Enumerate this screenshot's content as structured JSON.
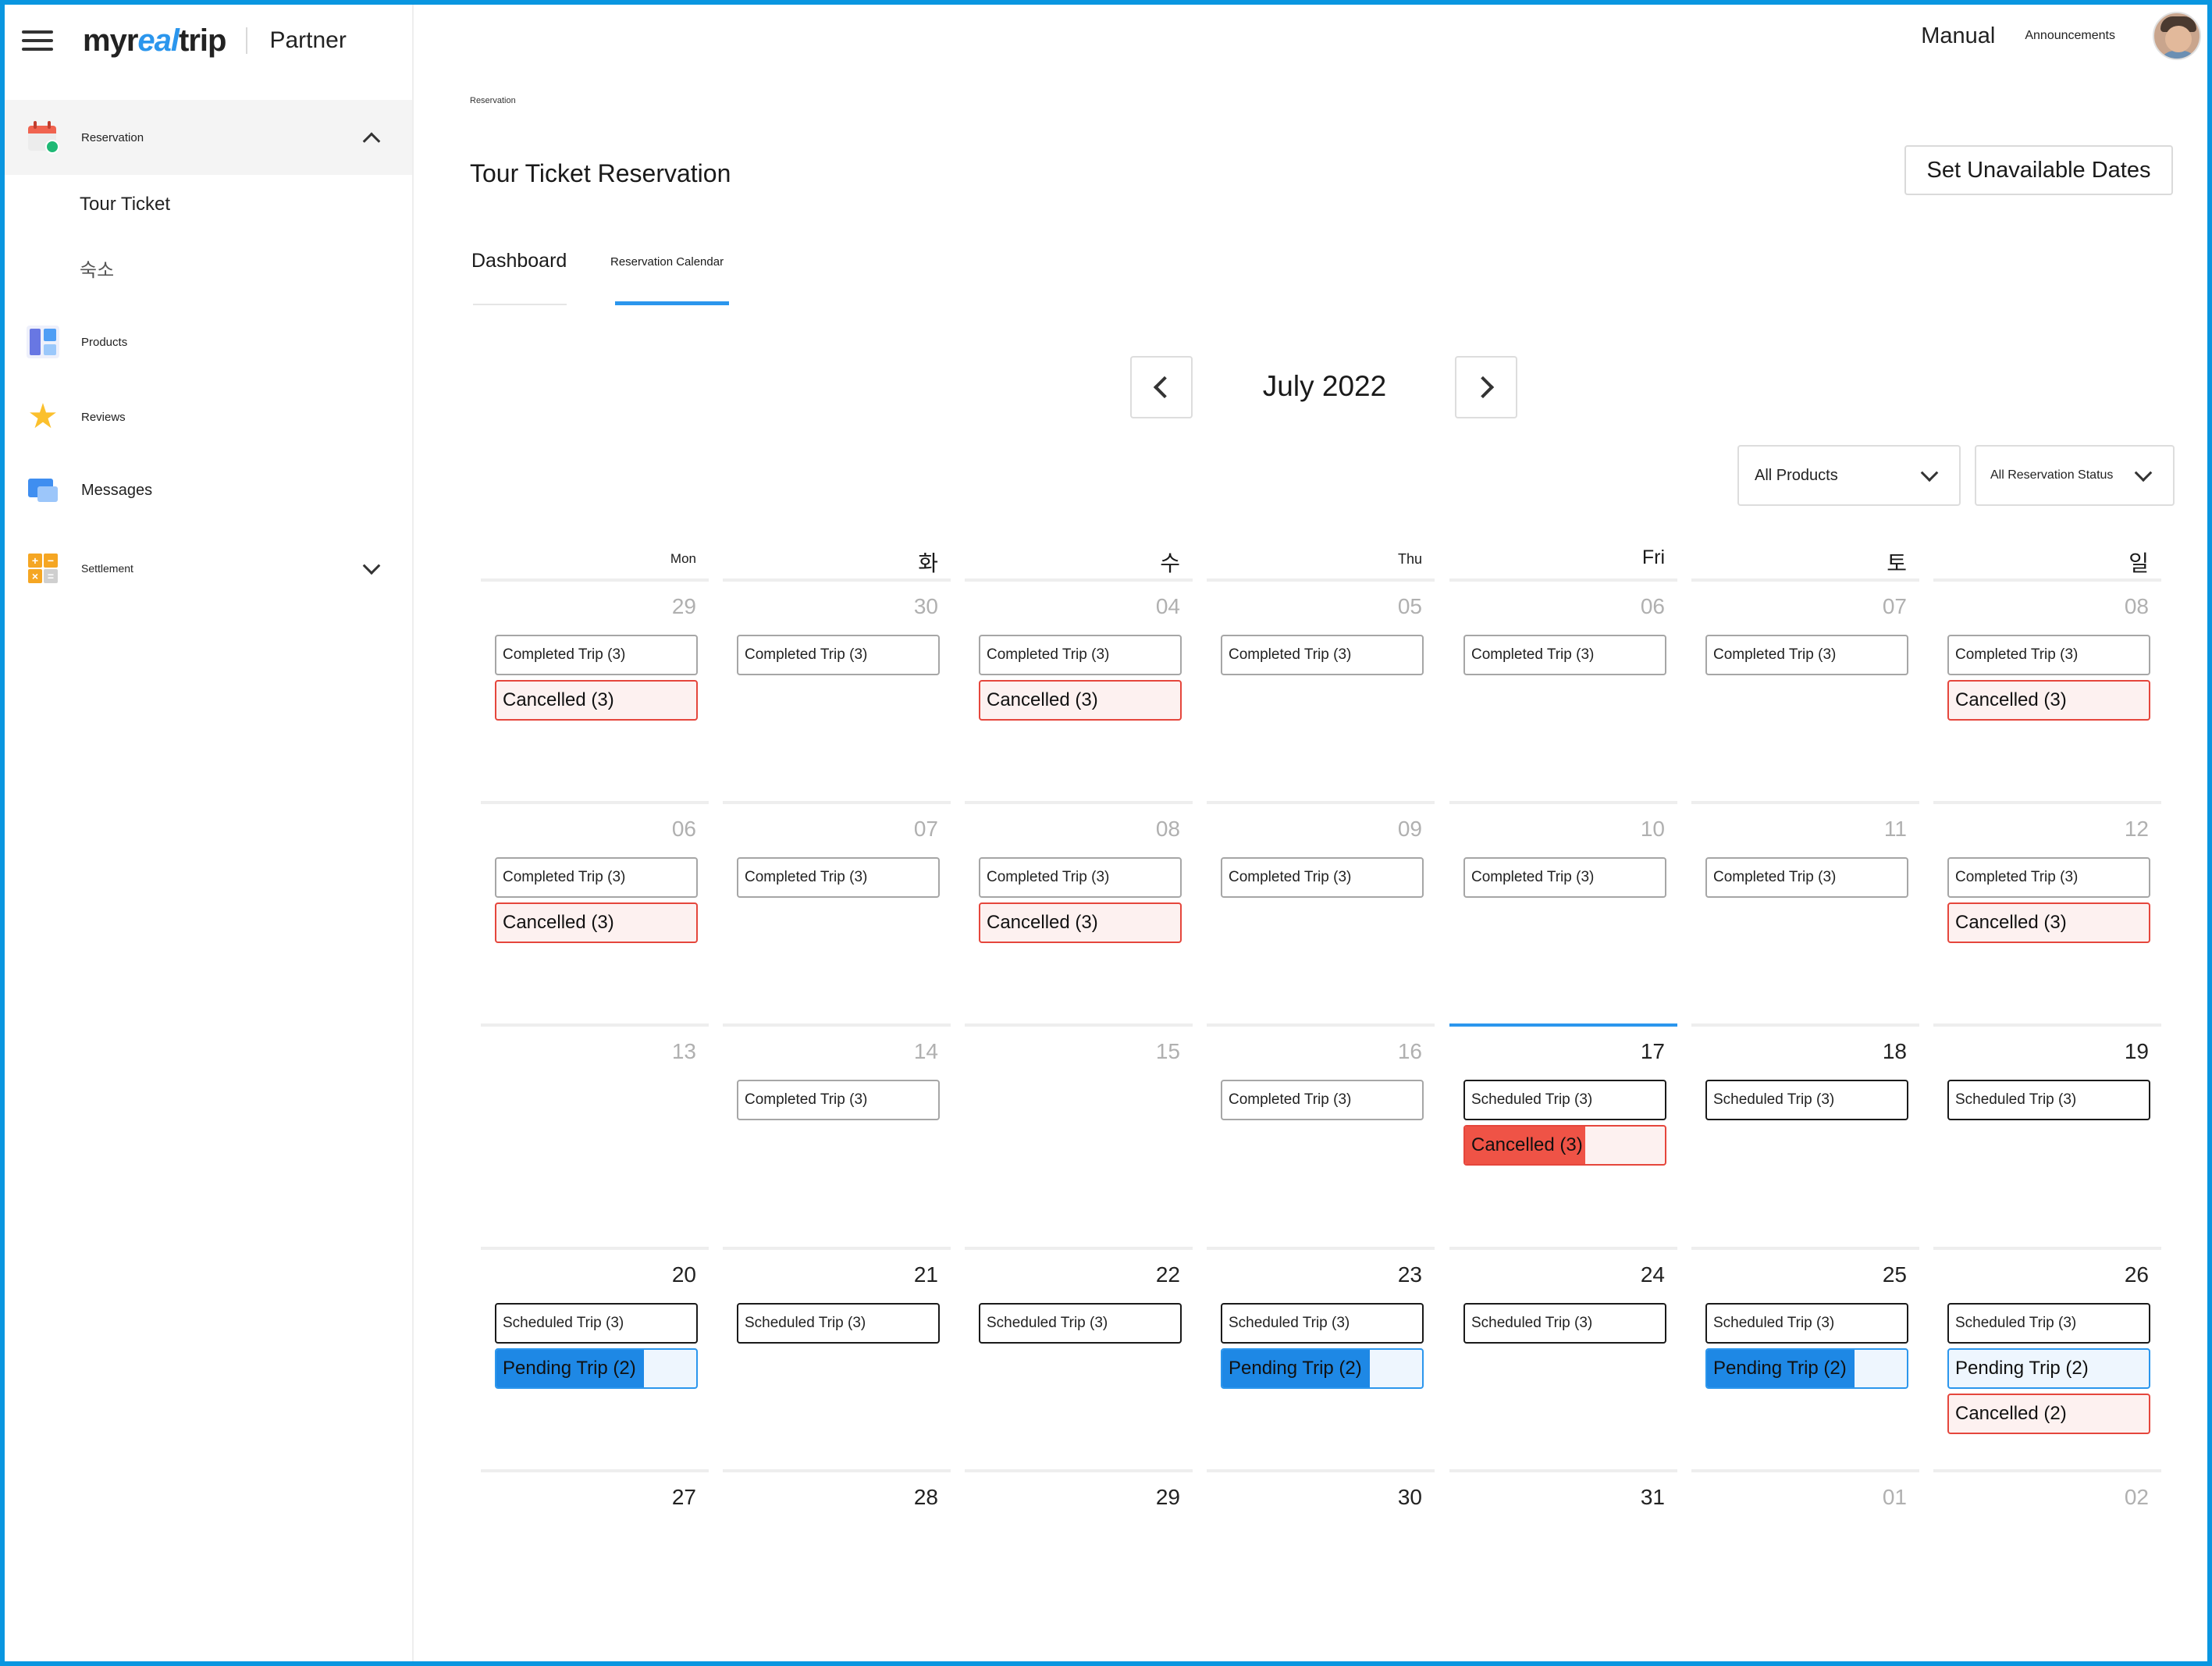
{
  "sidebar": {
    "logo_main": "myr",
    "logo_accent": "eal",
    "logo_tail": "trip",
    "partner": "Partner",
    "reservation": "Reservation",
    "sub_tour_ticket": "Tour Ticket",
    "sub_lodging": "숙소",
    "products": "Products",
    "reviews": "Reviews",
    "messages": "Messages",
    "settlement": "Settlement"
  },
  "topbar": {
    "manual": "Manual",
    "announcements": "Announcements"
  },
  "page": {
    "breadcrumb": "Reservation",
    "title": "Tour Ticket Reservation",
    "unavailable_button": "Set Unavailable Dates",
    "tab_dashboard": "Dashboard",
    "tab_calendar": "Reservation Calendar",
    "active_tab": "Reservation Calendar"
  },
  "calendar": {
    "month": "July 2022",
    "filter_products": "All Products",
    "filter_status": "All Reservation Status",
    "weekdays": [
      "Mon",
      "화",
      "수",
      "Thu",
      "Fri",
      "토",
      "일"
    ],
    "today": "17",
    "colors": {
      "accent": "#2b96ed",
      "cancelled": "#e5463c",
      "pending": "#1e88e5",
      "completed_border": "#a6a6a6",
      "scheduled_border": "#1a1a1a"
    },
    "weeks": [
      [
        {
          "day": "29",
          "muted": true,
          "items": [
            {
              "type": "completed",
              "label": "Completed Trip (3)"
            },
            {
              "type": "cancelled",
              "label": "Cancelled (3)"
            }
          ]
        },
        {
          "day": "30",
          "muted": true,
          "items": [
            {
              "type": "completed",
              "label": "Completed Trip (3)"
            }
          ]
        },
        {
          "day": "04",
          "muted": true,
          "items": [
            {
              "type": "completed",
              "label": "Completed Trip (3)"
            },
            {
              "type": "cancelled",
              "label": "Cancelled (3)"
            }
          ]
        },
        {
          "day": "05",
          "muted": true,
          "items": [
            {
              "type": "completed",
              "label": "Completed Trip (3)"
            }
          ]
        },
        {
          "day": "06",
          "muted": true,
          "items": [
            {
              "type": "completed",
              "label": "Completed Trip (3)"
            }
          ]
        },
        {
          "day": "07",
          "muted": true,
          "items": [
            {
              "type": "completed",
              "label": "Completed Trip (3)"
            }
          ]
        },
        {
          "day": "08",
          "muted": true,
          "items": [
            {
              "type": "completed",
              "label": "Completed Trip (3)"
            },
            {
              "type": "cancelled",
              "label": "Cancelled (3)"
            }
          ]
        }
      ],
      [
        {
          "day": "06",
          "muted": true,
          "items": [
            {
              "type": "completed",
              "label": "Completed Trip (3)"
            },
            {
              "type": "cancelled",
              "label": "Cancelled (3)"
            }
          ]
        },
        {
          "day": "07",
          "muted": true,
          "items": [
            {
              "type": "completed",
              "label": "Completed Trip (3)"
            }
          ]
        },
        {
          "day": "08",
          "muted": true,
          "items": [
            {
              "type": "completed",
              "label": "Completed Trip (3)"
            },
            {
              "type": "cancelled",
              "label": "Cancelled (3)"
            }
          ]
        },
        {
          "day": "09",
          "muted": true,
          "items": [
            {
              "type": "completed",
              "label": "Completed Trip (3)"
            }
          ]
        },
        {
          "day": "10",
          "muted": true,
          "items": [
            {
              "type": "completed",
              "label": "Completed Trip (3)"
            }
          ]
        },
        {
          "day": "11",
          "muted": true,
          "items": [
            {
              "type": "completed",
              "label": "Completed Trip (3)"
            }
          ]
        },
        {
          "day": "12",
          "muted": true,
          "items": [
            {
              "type": "completed",
              "label": "Completed Trip (3)"
            },
            {
              "type": "cancelled",
              "label": "Cancelled (3)"
            }
          ]
        }
      ],
      [
        {
          "day": "13",
          "muted": true,
          "items": []
        },
        {
          "day": "14",
          "muted": true,
          "items": [
            {
              "type": "completed",
              "label": "Completed Trip (3)"
            }
          ]
        },
        {
          "day": "15",
          "muted": true,
          "items": []
        },
        {
          "day": "16",
          "muted": true,
          "items": [
            {
              "type": "completed",
              "label": "Completed Trip (3)"
            }
          ]
        },
        {
          "day": "17",
          "muted": false,
          "today": true,
          "items": [
            {
              "type": "scheduled",
              "label": "Scheduled Trip (3)"
            },
            {
              "type": "cancelled",
              "label": "Cancelled (3)",
              "highlight": 0.6
            }
          ]
        },
        {
          "day": "18",
          "muted": false,
          "items": [
            {
              "type": "scheduled",
              "label": "Scheduled Trip (3)"
            }
          ]
        },
        {
          "day": "19",
          "muted": false,
          "items": [
            {
              "type": "scheduled",
              "label": "Scheduled Trip (3)"
            }
          ]
        }
      ],
      [
        {
          "day": "20",
          "muted": false,
          "items": [
            {
              "type": "scheduled",
              "label": "Scheduled Trip (3)"
            },
            {
              "type": "pending",
              "label": "Pending Trip (2)",
              "highlight": 0.74
            }
          ]
        },
        {
          "day": "21",
          "muted": false,
          "items": [
            {
              "type": "scheduled",
              "label": "Scheduled Trip (3)"
            }
          ]
        },
        {
          "day": "22",
          "muted": false,
          "items": [
            {
              "type": "scheduled",
              "label": "Scheduled Trip (3)"
            }
          ]
        },
        {
          "day": "23",
          "muted": false,
          "items": [
            {
              "type": "scheduled",
              "label": "Scheduled Trip (3)"
            },
            {
              "type": "pending",
              "label": "Pending Trip (2)",
              "highlight": 0.74
            }
          ]
        },
        {
          "day": "24",
          "muted": false,
          "items": [
            {
              "type": "scheduled",
              "label": "Scheduled Trip (3)"
            }
          ]
        },
        {
          "day": "25",
          "muted": false,
          "items": [
            {
              "type": "scheduled",
              "label": "Scheduled Trip (3)"
            },
            {
              "type": "pending",
              "label": "Pending Trip (2)",
              "highlight": 0.74
            }
          ]
        },
        {
          "day": "26",
          "muted": false,
          "items": [
            {
              "type": "scheduled",
              "label": "Scheduled Trip (3)"
            },
            {
              "type": "pending",
              "label": "Pending Trip (2)"
            },
            {
              "type": "cancelled",
              "label": "Cancelled (2)"
            }
          ]
        }
      ],
      [
        {
          "day": "27",
          "muted": false,
          "items": []
        },
        {
          "day": "28",
          "muted": false,
          "items": []
        },
        {
          "day": "29",
          "muted": false,
          "items": []
        },
        {
          "day": "30",
          "muted": false,
          "items": []
        },
        {
          "day": "31",
          "muted": false,
          "items": []
        },
        {
          "day": "01",
          "muted": true,
          "items": []
        },
        {
          "day": "02",
          "muted": true,
          "items": []
        }
      ]
    ]
  }
}
